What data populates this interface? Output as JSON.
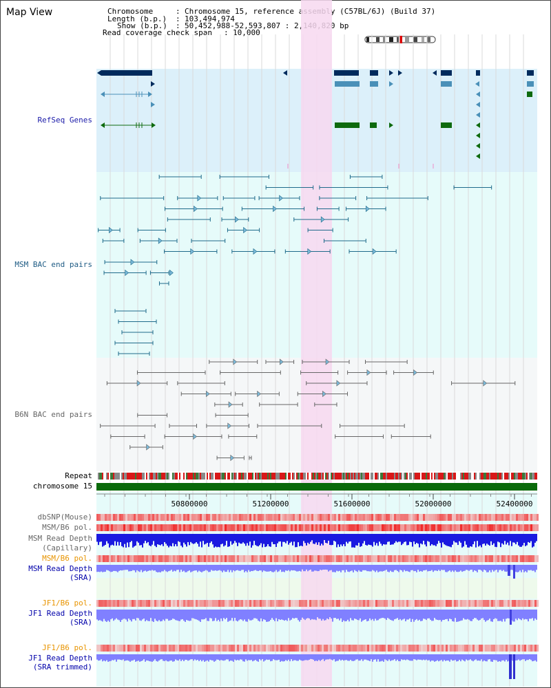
{
  "view_title": "Map View",
  "info": {
    "chromosome_label": "Chromosome",
    "chromosome_value": "Chromosome 15, reference assembly (C57BL/6J) (Build 37)",
    "length_label": "Length (b.p.)",
    "length_value": "103,494,974",
    "show_label": "Show (b.p.)",
    "show_value": "50,452,988-52,593,807 : 2,140,820 bp",
    "span_label": "Read coverage check span",
    "span_value": "10,000"
  },
  "tracks": {
    "refseq": "RefSeq Genes",
    "msm_bac": "MSM BAC end pairs",
    "b6n_bac": "B6N BAC end pairs",
    "repeat": "Repeat",
    "chromosome": "chromosome 15",
    "dbsnp": "dbSNP(Mouse)",
    "msm_b6_pol_1": "MSM/B6 pol.",
    "msm_depth_cap_1": "MSM Read Depth",
    "msm_depth_cap_2": "(Capillary)",
    "msm_b6_pol_2": "MSM/B6 pol.",
    "msm_depth_sra_1": "MSM Read Depth",
    "msm_depth_sra_2": "(SRA)",
    "jf1_b6_pol_1": "JF1/B6 pol.",
    "jf1_depth_sra_1": "JF1 Read Depth",
    "jf1_depth_sra_2": "(SRA)",
    "jf1_b6_pol_2": "JF1/B6 pol.",
    "jf1_depth_trim_1": "JF1 Read Depth",
    "jf1_depth_trim_2": "(SRA trimmed)"
  },
  "axis": {
    "ticks": [
      "50800000",
      "51200000",
      "51600000",
      "52000000",
      "52400000"
    ]
  },
  "colors": {
    "refseq_bg": "#dcf0fa",
    "track_bg": "#e6fbfa",
    "highlight": "#f7d8f0",
    "gene_navy": "#002a5c",
    "gene_light": "#4a90b8",
    "gene_green": "#0e6a0e",
    "msm_line": "#1e6a8a",
    "b6n_line": "#666666",
    "chromosome_bar": "#0a6a0a",
    "pol_red": "#f05050",
    "depth_blue": "#1a1ae0",
    "depth_light_blue": "#8080ff"
  }
}
